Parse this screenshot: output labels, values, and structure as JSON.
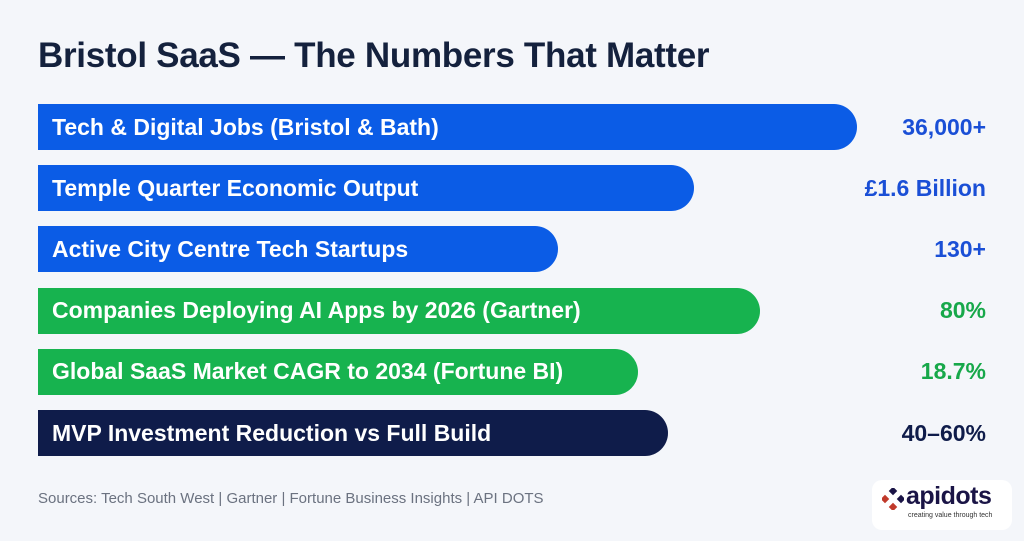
{
  "chart_data": {
    "type": "bar",
    "orientation": "horizontal",
    "title": "Bristol SaaS — The Numbers That Matter",
    "categories": [
      "Tech & Digital Jobs (Bristol & Bath)",
      "Temple Quarter Economic Output",
      "Active City Centre Tech Startups",
      "Companies Deploying AI Apps by 2026 (Gartner)",
      "Global SaaS Market CAGR to 2034 (Fortune BI)",
      "MVP Investment Reduction vs Full Build"
    ],
    "value_labels": [
      "36,000+",
      "£1.6 Billion",
      "130+",
      "80%",
      "18.7%",
      "40–60%"
    ],
    "bar_colors": [
      "#0b5ce6",
      "#0b5ce6",
      "#0b5ce6",
      "#17b34f",
      "#17b34f",
      "#0f1c4a"
    ],
    "label_colors": [
      "#1a4fd6",
      "#1a4fd6",
      "#1a4fd6",
      "#17a84a",
      "#17a84a",
      "#0f1c4a"
    ],
    "grid": false
  },
  "sources": "Sources: Tech South West | Gartner | Fortune Business Insights | API DOTS",
  "logo": {
    "name": "apidots",
    "tagline": "creating value through tech",
    "colors": [
      "#1a1446",
      "#c0392b"
    ]
  }
}
